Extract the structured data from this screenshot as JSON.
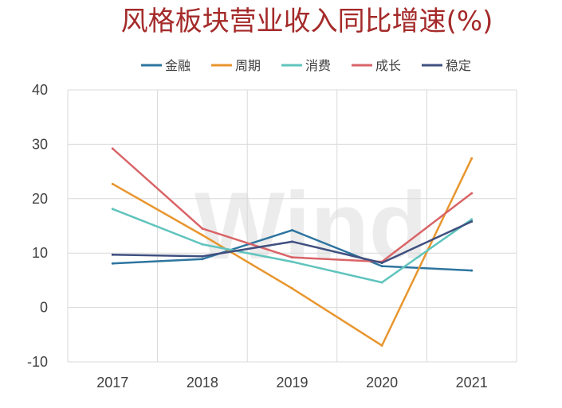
{
  "chart_data": {
    "type": "line",
    "title": "风格板块营业收入同比增速(%)",
    "watermark": "Wind",
    "categories": [
      "2017",
      "2018",
      "2019",
      "2020",
      "2021"
    ],
    "ylim": [
      -10,
      40
    ],
    "yticks": [
      -10,
      0,
      10,
      20,
      30,
      40
    ],
    "grid": true,
    "legend_position": "top",
    "series": [
      {
        "name": "金融",
        "color": "#2e75a0",
        "values": [
          8.1,
          8.9,
          14.2,
          7.6,
          6.8
        ]
      },
      {
        "name": "周期",
        "color": "#e8962e",
        "values": [
          22.7,
          13.3,
          3.5,
          -7.0,
          27.4
        ]
      },
      {
        "name": "消费",
        "color": "#5fc4bd",
        "values": [
          18.1,
          11.6,
          8.4,
          4.6,
          16.2
        ]
      },
      {
        "name": "成长",
        "color": "#d96467",
        "values": [
          29.2,
          14.5,
          9.2,
          8.4,
          21.0
        ]
      },
      {
        "name": "稳定",
        "color": "#3f4f7f",
        "values": [
          9.7,
          9.4,
          12.1,
          8.2,
          15.8
        ]
      }
    ]
  }
}
